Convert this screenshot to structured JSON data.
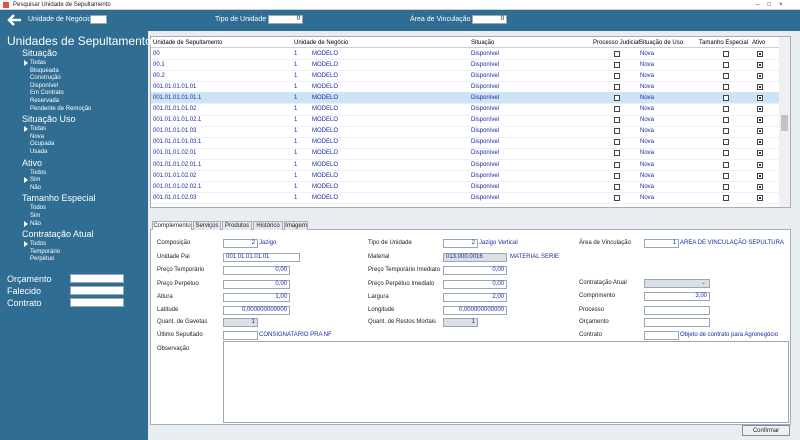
{
  "window": {
    "title": "Pesquisar Unidade de Sepultamento"
  },
  "topbar": {
    "fields": [
      {
        "label": "Unidade de Negócio"
      },
      {
        "label": "Tipo de Unidade",
        "value": "0"
      },
      {
        "label": "Área de Vinculação",
        "value": "0"
      }
    ]
  },
  "sidebar": {
    "title": "Unidades de Sepultamento",
    "groups": [
      {
        "title": "Situação",
        "items": [
          "Todas",
          "Bloqueada",
          "Construção",
          "Disponível",
          "Em Contrato",
          "Reservada",
          "Pendente de Remoção"
        ],
        "selected": 0
      },
      {
        "title": "Situação Uso",
        "items": [
          "Todas",
          "Nova",
          "Ocupada",
          "Usada"
        ],
        "selected": 0
      },
      {
        "title": "Ativo",
        "items": [
          "Todos",
          "Sim",
          "Não"
        ],
        "selected": 1
      },
      {
        "title": "Tamanho Especial",
        "items": [
          "Todos",
          "Sim",
          "Não"
        ],
        "selected": 2
      },
      {
        "title": "Contratação Atual",
        "items": [
          "Todos",
          "Temporário",
          "Perpétuo"
        ],
        "selected": 0
      }
    ],
    "fields": [
      "Orçamento",
      "Falecido",
      "Contrato"
    ]
  },
  "grid": {
    "columns": [
      "Unidade de Sepultamento",
      "Unidade de Negócio",
      "Situação",
      "Processo Judicial",
      "Situação de Uso",
      "Tamanho Especial",
      "Ativo"
    ],
    "selected": 4,
    "rows": [
      {
        "code": "00",
        "unit": "1",
        "unit_name": "MODELO",
        "status": "Disponível",
        "judicial": false,
        "use": "Nova",
        "special": false,
        "active": true
      },
      {
        "code": "00.1",
        "unit": "1",
        "unit_name": "MODELO",
        "status": "Disponível",
        "judicial": false,
        "use": "Nova",
        "special": false,
        "active": true
      },
      {
        "code": "00.2",
        "unit": "1",
        "unit_name": "MODELO",
        "status": "Disponível",
        "judicial": false,
        "use": "Nova",
        "special": false,
        "active": true
      },
      {
        "code": "001.01.01.01.01",
        "unit": "1",
        "unit_name": "MODELO",
        "status": "Disponível",
        "judicial": false,
        "use": "Nova",
        "special": false,
        "active": true
      },
      {
        "code": "001.01.01.01.01.1",
        "unit": "1",
        "unit_name": "MODELO",
        "status": "Disponível",
        "judicial": false,
        "use": "Nova",
        "special": false,
        "active": true
      },
      {
        "code": "001.01.01.01.02",
        "unit": "1",
        "unit_name": "MODELO",
        "status": "Disponível",
        "judicial": false,
        "use": "Nova",
        "special": false,
        "active": true
      },
      {
        "code": "001.01.01.01.02.1",
        "unit": "1",
        "unit_name": "MODELO",
        "status": "Disponível",
        "judicial": false,
        "use": "Nova",
        "special": false,
        "active": true
      },
      {
        "code": "001.01.01.01.03",
        "unit": "1",
        "unit_name": "MODELO",
        "status": "Disponível",
        "judicial": false,
        "use": "Nova",
        "special": false,
        "active": true
      },
      {
        "code": "001.01.01.01.03.1",
        "unit": "1",
        "unit_name": "MODELO",
        "status": "Disponível",
        "judicial": false,
        "use": "Nova",
        "special": false,
        "active": true
      },
      {
        "code": "001.01.01.02.01",
        "unit": "1",
        "unit_name": "MODELO",
        "status": "Disponível",
        "judicial": false,
        "use": "Nova",
        "special": false,
        "active": true
      },
      {
        "code": "001.01.01.02.01.1",
        "unit": "1",
        "unit_name": "MODELO",
        "status": "Disponível",
        "judicial": false,
        "use": "Nova",
        "special": false,
        "active": true
      },
      {
        "code": "001.01.01.02.02",
        "unit": "1",
        "unit_name": "MODELO",
        "status": "Disponível",
        "judicial": false,
        "use": "Nova",
        "special": false,
        "active": true
      },
      {
        "code": "001.01.01.02.02.1",
        "unit": "1",
        "unit_name": "MODELO",
        "status": "Disponível",
        "judicial": false,
        "use": "Nova",
        "special": false,
        "active": true
      },
      {
        "code": "001.01.01.02.03",
        "unit": "1",
        "unit_name": "MODELO",
        "status": "Disponível",
        "judicial": false,
        "use": "Nova",
        "special": false,
        "active": true
      }
    ]
  },
  "tabs": [
    "Complemento",
    "Serviços",
    "Produtos",
    "Histórico",
    "Imagem"
  ],
  "form": {
    "fields": [
      {
        "label": "Composição",
        "value": "2",
        "desc": "Jazigo"
      },
      {
        "label": "Unidade Pai",
        "value": "001.01.01.01.01"
      },
      {
        "label": "Preço Temporário",
        "value": "0,00"
      },
      {
        "label": "Preço Perpétuo",
        "value": "0,00"
      },
      {
        "label": "Altura",
        "value": "1,00"
      },
      {
        "label": "Latitude",
        "value": "0,000000000000"
      },
      {
        "label": "Quant. de Gavetas",
        "value": "1"
      },
      {
        "label": "Último Sepultado",
        "desc": "CONSIGNATARIO PRA NF"
      },
      {
        "label": "Observação"
      },
      {
        "label": "Tipo de Unidade",
        "value": "2",
        "desc": "Jazigo Vertical"
      },
      {
        "label": "Material",
        "value": "013.000.0016",
        "desc": "MATERIAL SERIE"
      },
      {
        "label": "Preço Temporário Imediato",
        "value": "0,00"
      },
      {
        "label": "Preço Perpétuo Imediato",
        "value": "0,00"
      },
      {
        "label": "Largura",
        "value": "2,00"
      },
      {
        "label": "Longitude",
        "value": "0,000000000000"
      },
      {
        "label": "Quant. de Restos Mortais",
        "value": "1"
      },
      {
        "label": "Área de Vinculação",
        "value": "1",
        "desc": "AREA DE VINCULAÇÃO SEPULTURA"
      },
      {
        "label": "Contratação Atual"
      },
      {
        "label": "Comprimento",
        "value": "3,00"
      },
      {
        "label": "Processo"
      },
      {
        "label": "Orçamento"
      },
      {
        "label": "Contrato",
        "desc": "Objeto de contrato para Agronegócio"
      }
    ]
  },
  "button": "Confirmar"
}
